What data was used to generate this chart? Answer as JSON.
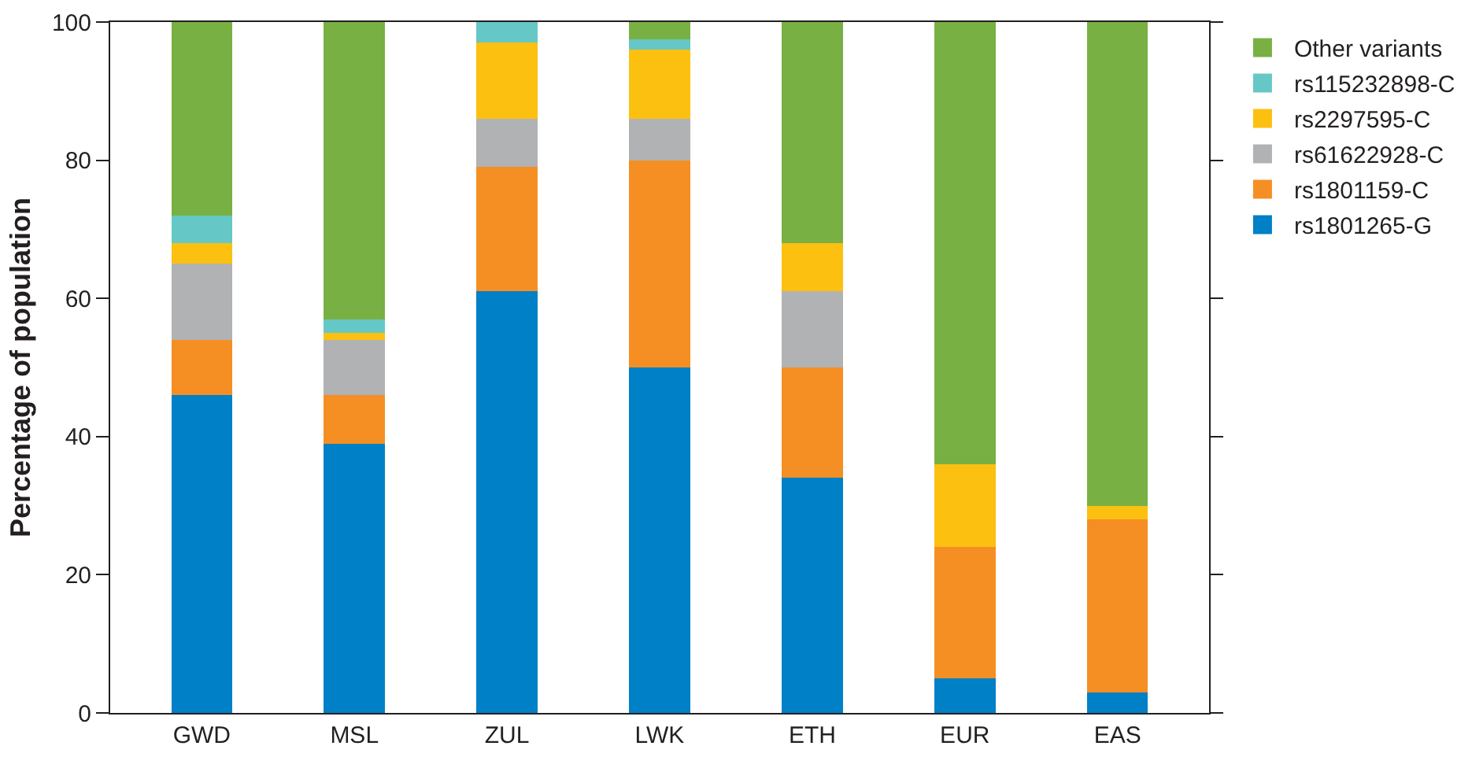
{
  "chart_data": {
    "type": "bar",
    "stacked": true,
    "ylabel": "Percentage of population",
    "categories": [
      "GWD",
      "MSL",
      "ZUL",
      "LWK",
      "ETH",
      "EUR",
      "EAS"
    ],
    "series": [
      {
        "name": "rs1801265-G",
        "color": "#0080c6",
        "values": [
          46,
          39,
          61,
          50,
          34,
          5,
          3
        ]
      },
      {
        "name": "rs1801159-C",
        "color": "#f58f24",
        "values": [
          8,
          7,
          18,
          30,
          16,
          19,
          25
        ]
      },
      {
        "name": "rs61622928-C",
        "color": "#b1b2b4",
        "values": [
          11,
          8,
          7,
          6,
          11,
          0,
          0
        ]
      },
      {
        "name": "rs2297595-C",
        "color": "#fcc010",
        "values": [
          3,
          1,
          11,
          10,
          7,
          12,
          2
        ]
      },
      {
        "name": "rs115232898-C",
        "color": "#66c8c6",
        "values": [
          4,
          2,
          3,
          1.5,
          0,
          0,
          0
        ]
      },
      {
        "name": "Other variants",
        "color": "#78b043",
        "values": [
          28,
          43,
          0,
          2.5,
          32,
          64,
          70
        ]
      }
    ],
    "ylim": [
      0,
      100
    ],
    "yticks": [
      0,
      20,
      40,
      60,
      80,
      100
    ],
    "grid": false,
    "legend": "right"
  }
}
